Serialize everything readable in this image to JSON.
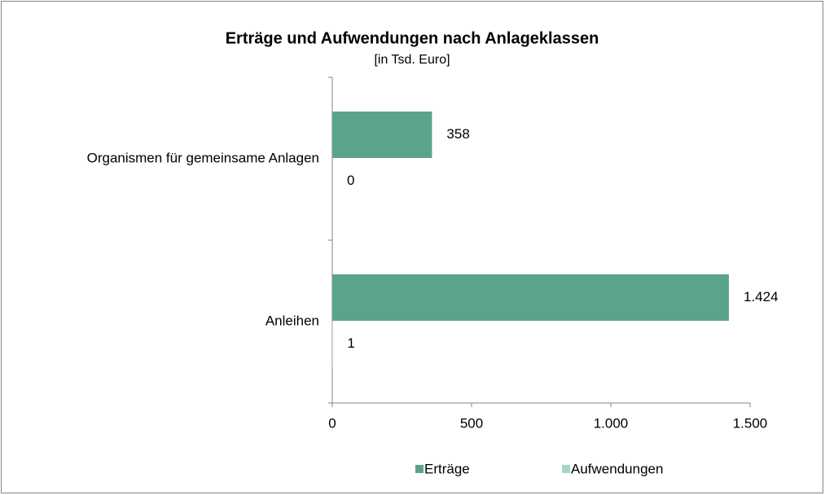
{
  "chart_data": {
    "type": "hbar",
    "title": "Erträge und Aufwendungen nach Anlageklassen",
    "subtitle": "[in Tsd. Euro]",
    "categories": [
      "Organismen für gemeinsame Anlagen",
      "Anleihen"
    ],
    "series": [
      {
        "name": "Erträge",
        "color": "#5ba38a",
        "values": [
          358,
          1424
        ],
        "value_labels": [
          "358",
          "1.424"
        ]
      },
      {
        "name": "Aufwendungen",
        "color": "#a8d5c5",
        "values": [
          0,
          1
        ],
        "value_labels": [
          "0",
          "1"
        ]
      }
    ],
    "xlim": [
      0,
      1500
    ],
    "xticks": [
      0,
      500,
      {
        "value": 1000,
        "label": "1.000"
      },
      {
        "value": 1500,
        "label": "1.500"
      }
    ],
    "grid": false,
    "legend": "bottom"
  }
}
